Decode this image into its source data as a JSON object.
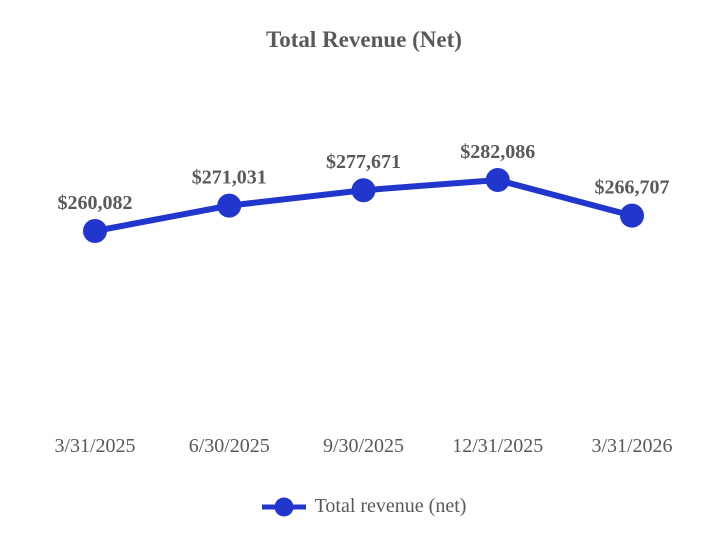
{
  "chart_data": {
    "type": "line",
    "title": "Total Revenue (Net)",
    "categories": [
      "3/31/2025",
      "6/30/2025",
      "9/30/2025",
      "12/31/2025",
      "3/31/2026"
    ],
    "series": [
      {
        "name": "Total revenue (net)",
        "values": [
          260082,
          271031,
          277671,
          282086,
          266707
        ],
        "labels": [
          "$260,082",
          "$271,031",
          "$277,671",
          "$282,086",
          "$266,707"
        ]
      }
    ],
    "xlabel": "",
    "ylabel": "",
    "grid": false,
    "axes_visible": false,
    "legend_position": "bottom",
    "marker": "circle",
    "colors": {
      "line": "#2136CC",
      "text": "#595959",
      "background": "#FFFFFF"
    }
  }
}
